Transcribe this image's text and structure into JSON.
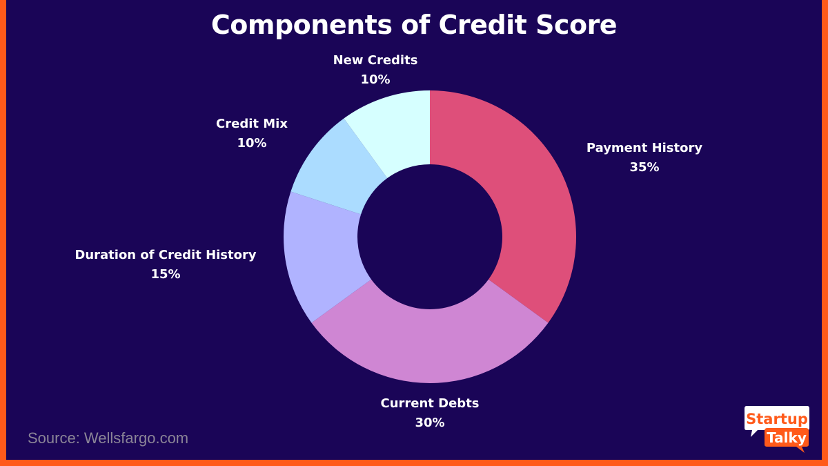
{
  "chart_data": {
    "type": "pie",
    "variant": "donut",
    "title": "Components of Credit Score",
    "categories": [
      "Payment History",
      "Current Debts",
      "Duration of Credit History",
      "Credit Mix",
      "New Credits"
    ],
    "values": [
      35,
      30,
      15,
      10,
      10
    ],
    "labels": [
      "35%",
      "30%",
      "15%",
      "10%",
      "10%"
    ],
    "colors": [
      "#DE4F7A",
      "#CF86D3",
      "#B0B3FF",
      "#ABDCFF",
      "#D6FFFF"
    ],
    "legend": "none"
  },
  "source": "Source: Wellsfargo.com",
  "logo": {
    "line1": "Startup",
    "line2": "Talky"
  },
  "colors": {
    "background": "#1A0557",
    "border": "#FF5A1A"
  }
}
